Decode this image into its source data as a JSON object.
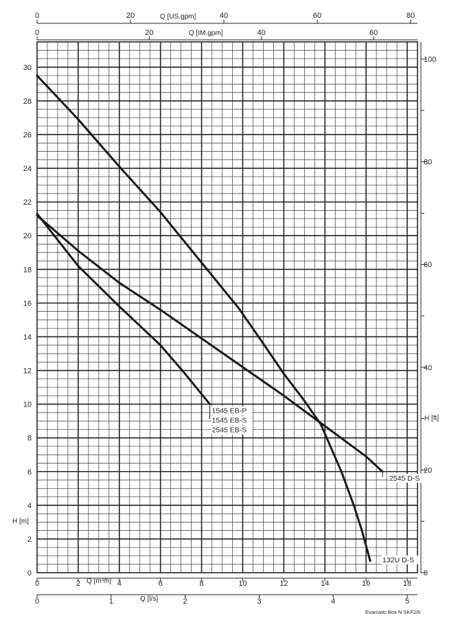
{
  "chart_data": {
    "type": "line",
    "title": "",
    "footer": "Evamatic Box N SKF2/0",
    "x_axis": {
      "label": "Q [m³/h]",
      "range": [
        0,
        18.5
      ],
      "ticks": [
        "0",
        "2",
        "4",
        "6",
        "8",
        "10",
        "12",
        "14",
        "16",
        "18"
      ]
    },
    "x_axis_ls": {
      "label": "Q [l/s]",
      "ticks": [
        "0",
        "1",
        "2",
        "3",
        "4",
        "5"
      ]
    },
    "x_axis_usgpm": {
      "label": "Q [US.gpm]",
      "ticks": [
        "0",
        "20",
        "40",
        "60",
        "80"
      ]
    },
    "x_axis_imgpm": {
      "label": "Q [IM.gpm]",
      "ticks": [
        "0",
        "20",
        "40",
        "60"
      ]
    },
    "y_axis": {
      "label": "H [m]",
      "range": [
        0,
        31.5
      ],
      "ticks": [
        "0",
        "2",
        "4",
        "6",
        "8",
        "10",
        "12",
        "14",
        "16",
        "18",
        "20",
        "22",
        "24",
        "26",
        "28",
        "30"
      ]
    },
    "y_axis_ft": {
      "label": "H [ft]",
      "ticks": [
        "0",
        "20",
        "40",
        "60",
        "80",
        "100"
      ]
    },
    "grid": true,
    "series": [
      {
        "labels": [
          "1545 EB-P",
          "1545 EB-S",
          "2545 EB-S"
        ],
        "x": [
          0,
          2,
          4,
          6,
          7.2,
          8.4
        ],
        "y": [
          21.3,
          18.2,
          15.8,
          13.5,
          11.8,
          10
        ]
      },
      {
        "labels": [
          "2545 D-S"
        ],
        "x": [
          0,
          2,
          4,
          6,
          8,
          10,
          12,
          14,
          16,
          16.8
        ],
        "y": [
          21.2,
          19.1,
          17.2,
          15.6,
          13.9,
          12.2,
          10.5,
          8.7,
          6.9,
          6
        ]
      },
      {
        "labels": [
          "132U D-S"
        ],
        "x": [
          0,
          2,
          4,
          6,
          8,
          9.8,
          11,
          12,
          13,
          13.8,
          14.8,
          15.4,
          15.8,
          16.2
        ],
        "y": [
          29.5,
          26.9,
          24.1,
          21.4,
          18.4,
          15.7,
          13.6,
          11.8,
          10.2,
          8.8,
          6.0,
          4.0,
          2.5,
          0.7
        ]
      }
    ]
  }
}
